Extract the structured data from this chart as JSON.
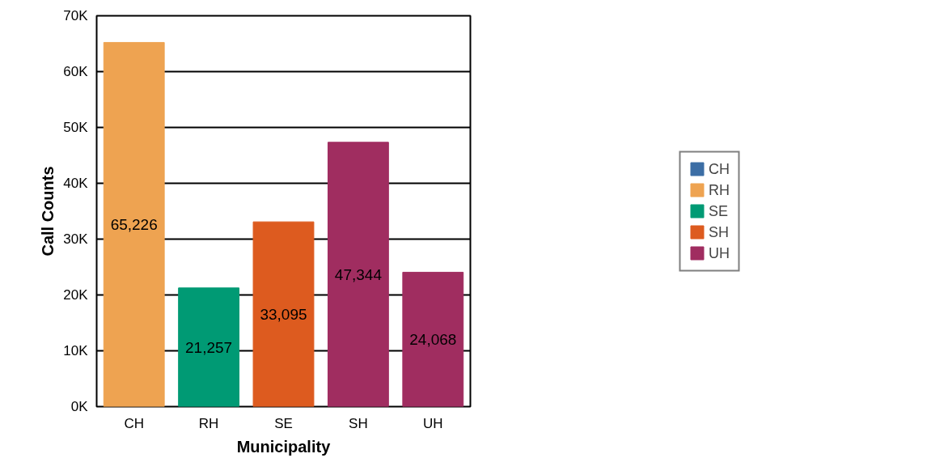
{
  "chart_data": {
    "type": "bar",
    "xlabel": "Municipality",
    "ylabel": "Call Counts",
    "categories": [
      "CH",
      "RH",
      "SE",
      "SH",
      "UH"
    ],
    "series": [
      {
        "name": "CH",
        "color": "#3c6ea5",
        "values": [
          null,
          null,
          null,
          null,
          null
        ]
      },
      {
        "name": "RH",
        "color": "#eea351",
        "values": [
          65226,
          null,
          null,
          null,
          null
        ],
        "value_labels": [
          "65,226",
          null,
          null,
          null,
          null
        ]
      },
      {
        "name": "SE",
        "color": "#009a74",
        "values": [
          null,
          21257,
          null,
          null,
          null
        ],
        "value_labels": [
          null,
          "21,257",
          null,
          null,
          null
        ]
      },
      {
        "name": "SH",
        "color": "#dd5b1f",
        "values": [
          null,
          null,
          33095,
          null,
          null
        ],
        "value_labels": [
          null,
          null,
          "33,095",
          null,
          null
        ]
      },
      {
        "name": "UH",
        "color": "#a02d60",
        "values": [
          null,
          null,
          null,
          47344,
          24068
        ],
        "value_labels": [
          null,
          null,
          null,
          "47,344",
          "24,068"
        ]
      }
    ],
    "ylim": [
      0,
      70000
    ],
    "yticks": [
      {
        "value": 0,
        "label": "0K"
      },
      {
        "value": 10000,
        "label": "10K"
      },
      {
        "value": 20000,
        "label": "20K"
      },
      {
        "value": 30000,
        "label": "30K"
      },
      {
        "value": 40000,
        "label": "40K"
      },
      {
        "value": 50000,
        "label": "50K"
      },
      {
        "value": 60000,
        "label": "60K"
      },
      {
        "value": 70000,
        "label": "70K"
      }
    ],
    "grid": "y",
    "legend": "right"
  }
}
